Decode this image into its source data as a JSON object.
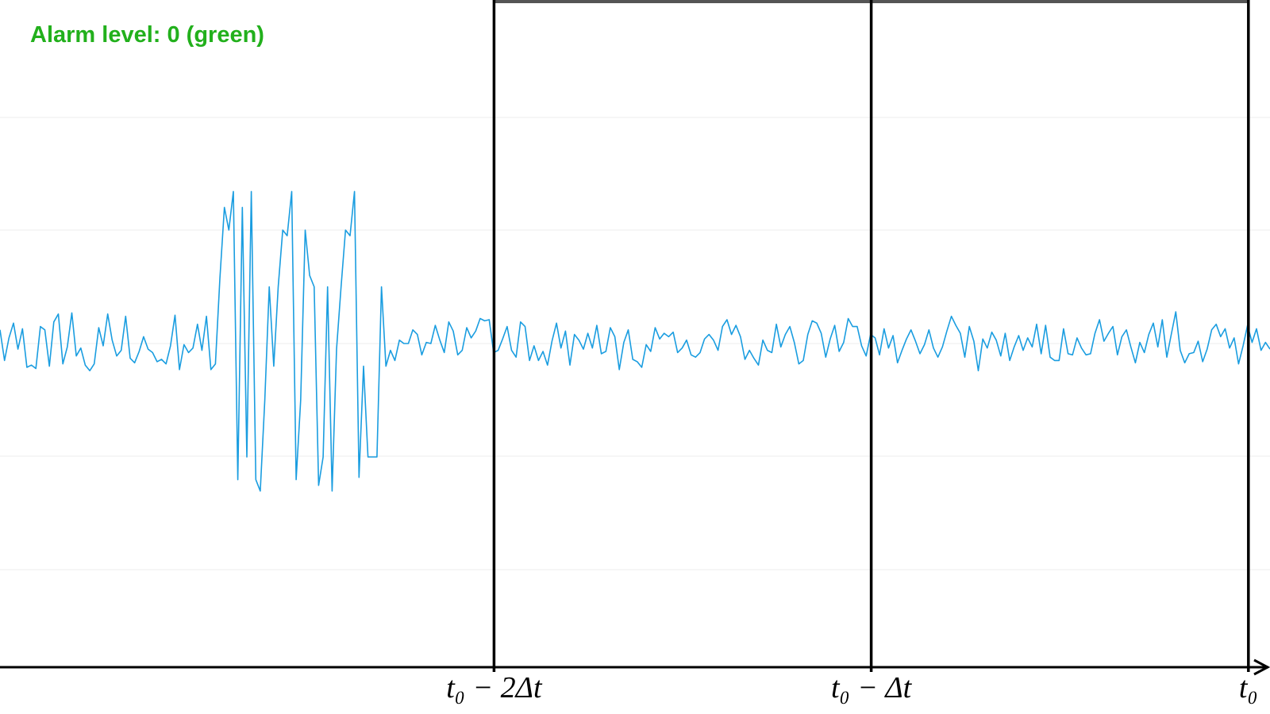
{
  "alarm": {
    "text": "Alarm level: 0 (green)",
    "color": "#22b01c"
  },
  "chart_data": {
    "type": "line",
    "grid": true,
    "ylim": [
      -10,
      10
    ],
    "series": [
      {
        "color": "#1a9de0",
        "y": [
          1.2,
          -1.5,
          0.5,
          1.8,
          -0.5,
          1.3,
          -2.1,
          -1.9,
          -2.2,
          1.5,
          1.2,
          -2.0,
          1.9,
          2.6,
          -1.8,
          -0.3,
          2.7,
          -1.1,
          -0.4,
          -1.9,
          -2.4,
          -1.8,
          1.4,
          -0.2,
          2.6,
          0.3,
          -1.1,
          -0.6,
          2.4,
          -1.3,
          -1.7,
          -0.7,
          0.6,
          -0.5,
          -0.8,
          -1.6,
          -1.4,
          -1.8,
          -0.2,
          2.5,
          -2.3,
          -0.1,
          -0.8,
          -0.4,
          1.7,
          -0.6,
          2.4,
          -2.3,
          -1.8,
          5.7,
          12.0,
          10.0,
          13.4,
          -12.0,
          12.0,
          -10.0,
          13.4,
          -12.0,
          -13.0,
          -5.0,
          5.0,
          -2.0,
          5.0,
          10.0,
          9.5,
          13.4,
          -12.0,
          -5.0,
          10.0,
          6.0,
          5.0,
          -12.5,
          -10.0,
          5.0,
          -13.0,
          -0.5,
          5.0,
          10.0,
          9.5,
          13.4,
          -11.8,
          -2.0,
          -10.0,
          -10.0,
          -10.0,
          5.0,
          -2.0,
          -0.6,
          -1.5,
          0.3,
          0,
          0,
          1.2,
          0.8,
          -1.0,
          0.1,
          0,
          1.6,
          0.3,
          -0.8,
          1.9,
          1.1,
          -1.0,
          -0.6,
          1.4,
          0.5,
          1.1,
          2.2,
          2.0,
          2.1,
          -0.8,
          -0.6,
          0.4,
          1.5,
          -0.6,
          -1.2,
          1.9,
          1.5,
          -1.5,
          -0.2,
          -1.5,
          -0.7,
          -1.9,
          0.2,
          1.8,
          -0.4,
          1.1,
          -1.9,
          0.8,
          0.3,
          -0.5,
          0.9,
          -0.4,
          1.6,
          -0.9,
          -0.7,
          1.4,
          0.6,
          -2.3,
          0.1,
          1.2,
          -1.4,
          -1.6,
          -2.1,
          -0.1,
          -0.7,
          1.4,
          0.4,
          0.9,
          0.6,
          1.0,
          -0.8,
          -0.4,
          0.3,
          -1.0,
          -1.2,
          -0.8,
          0.4,
          0.8,
          0.3,
          -0.6,
          1.5,
          2.1,
          0.8,
          1.6,
          0.6,
          -1.4,
          -0.6,
          -1.3,
          -1.9,
          0.3,
          -0.6,
          -0.8,
          1.7,
          -0.3,
          0.8,
          1.5,
          0.1,
          -1.8,
          -1.5,
          0.8,
          2.0,
          1.8,
          0.9,
          -1.2,
          0.4,
          1.6,
          -0.7,
          0.1,
          2.2,
          1.5,
          1.5,
          -0.2,
          -1.1,
          0.8,
          0.5,
          -1.0,
          1.3,
          -0.4,
          0.7,
          -1.7,
          -0.6,
          0.4,
          1.2,
          0.2,
          -0.9,
          -0.1,
          1.2,
          -0.4,
          -1.2,
          -0.3,
          1.1,
          2.4,
          1.6,
          0.9,
          -1.2,
          1.5,
          0.2,
          -2.4,
          0.4,
          -0.4,
          1.0,
          0.3,
          -1.1,
          0.9,
          -1.5,
          -0.3,
          0.7,
          -0.6,
          0.5,
          -0.3,
          1.7,
          -0.9,
          1.6,
          -1.2,
          -1.5,
          -1.5,
          1.3,
          -0.9,
          -1.0,
          0.5,
          -0.4,
          -1.0,
          -0.9,
          0.9,
          2.1,
          0.2,
          0.9,
          1.5,
          -1.0,
          0.6,
          1.2,
          -0.3,
          -1.7,
          0.1,
          -0.8,
          0.8,
          1.8,
          -0.3,
          2.1,
          -1.2,
          0.8,
          2.8,
          -0.6,
          -1.7,
          -0.9,
          -0.8,
          0.2,
          -1.6,
          -0.5,
          1.2,
          1.7,
          0.6,
          1.3,
          -0.4,
          0.5,
          -1.8,
          -0.2,
          1.6,
          0.1,
          1.3,
          -0.6,
          0.1,
          -0.5
        ]
      }
    ],
    "x_ticks": [
      {
        "label": "t₀ − 2Δt",
        "frac": 0.389
      },
      {
        "label": "t₀ − Δt",
        "frac": 0.686
      },
      {
        "label": "t₀",
        "frac": 0.983
      }
    ]
  }
}
